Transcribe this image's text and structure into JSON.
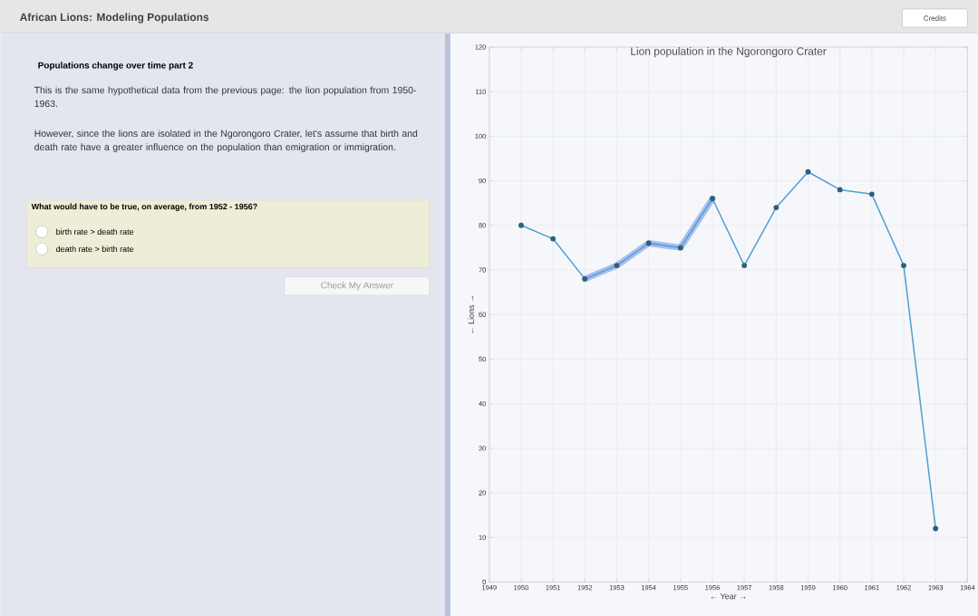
{
  "chart_data": {
    "type": "line",
    "title": "Lion population in the Ngorongoro Crater",
    "xlabel": "← Year →",
    "ylabel": "← Lions →",
    "x": [
      1950,
      1951,
      1952,
      1953,
      1954,
      1955,
      1956,
      1957,
      1958,
      1959,
      1960,
      1961,
      1962,
      1963
    ],
    "series": [
      {
        "color": "#a9bdf0",
        "marker": "none",
        "x": [
          1952,
          1953,
          1954,
          1955,
          1956
        ],
        "values": [
          68,
          71,
          76,
          75,
          86
        ]
      },
      {
        "color": "#4f9fd3",
        "marker": "circle",
        "values": [
          80,
          77,
          68,
          71,
          76,
          75,
          86,
          71,
          84,
          92,
          88,
          87,
          71,
          12
        ]
      }
    ],
    "xlim": [
      1949,
      1964
    ],
    "xticks": [
      1949,
      1950,
      1951,
      1952,
      1953,
      1954,
      1955,
      1956,
      1957,
      1958,
      1959,
      1960,
      1961,
      1962,
      1963,
      1964
    ],
    "ylim": [
      0,
      120
    ],
    "yticks": [
      0,
      10,
      20,
      30,
      40,
      50,
      60,
      70,
      80,
      90,
      100,
      110,
      120
    ],
    "grid": true,
    "line_style": "solid",
    "annotations": [
      "African Lions: Modeling Populations",
      "Credits",
      "Populations change over time part 2",
      "This is the same hypothetical data from the previous page: the lion population from 1950-1963.",
      "However, since the lions are isolated in the Ngorongoro Crater, let's assume that birth and death rate have a greater influence on the population than emigration or immigration.",
      "What would have to be true, on average, from 1952 - 1956?",
      "birth rate > death rate",
      "death rate > birth rate",
      "Check My Answer"
    ]
  }
}
